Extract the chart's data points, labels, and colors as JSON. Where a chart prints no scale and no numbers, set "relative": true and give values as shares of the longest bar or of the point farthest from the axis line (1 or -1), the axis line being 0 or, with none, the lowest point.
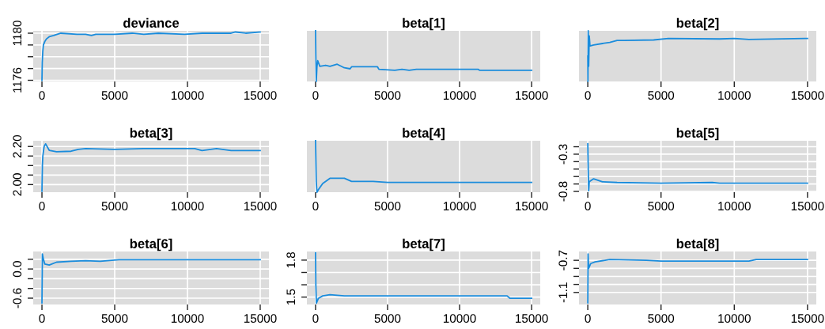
{
  "chart_data": [
    {
      "type": "line",
      "title": "deviance",
      "color": "#1a8cdc",
      "grid": true,
      "xlim": [
        -600,
        15600
      ],
      "xticks": [
        0,
        5000,
        10000,
        15000
      ],
      "ylim": [
        1175.9,
        1180.2
      ],
      "yticks": [
        {
          "value": 1176,
          "label": "1176"
        },
        {
          "value": 1177,
          "label": null
        },
        {
          "value": 1178,
          "label": null
        },
        {
          "value": 1179,
          "label": null
        },
        {
          "value": 1180,
          "label": "1180"
        }
      ],
      "x": [
        0,
        20,
        60,
        100,
        200,
        300,
        500,
        800,
        1300,
        2400,
        3000,
        3400,
        3700,
        5000,
        6200,
        7000,
        8000,
        9800,
        11000,
        13000,
        13300,
        14000,
        15000
      ],
      "values": [
        1176,
        1177.5,
        1178.5,
        1179,
        1179.3,
        1179.5,
        1179.7,
        1179.8,
        1180,
        1179.9,
        1179.9,
        1179.8,
        1179.9,
        1179.9,
        1180,
        1179.9,
        1180,
        1179.9,
        1180,
        1180,
        1180.1,
        1180,
        1180.1
      ]
    },
    {
      "type": "line",
      "title": "beta[1]",
      "color": "#1a8cdc",
      "grid": true,
      "relative": true,
      "xlim": [
        -600,
        15600
      ],
      "xticks": [
        0,
        5000,
        10000,
        15000
      ],
      "x": [
        0,
        20,
        50,
        100,
        150,
        300,
        700,
        1000,
        1500,
        2000,
        2400,
        2500,
        4300,
        4400,
        5500,
        6000,
        6500,
        7000,
        11300,
        11400,
        15000
      ],
      "values": [
        1,
        0.5,
        0,
        0.3,
        0.41,
        0.3,
        0.32,
        0.3,
        0.34,
        0.27,
        0.25,
        0.29,
        0.29,
        0.24,
        0.22,
        0.24,
        0.22,
        0.24,
        0.24,
        0.22,
        0.22
      ]
    },
    {
      "type": "line",
      "title": "beta[2]",
      "color": "#1a8cdc",
      "grid": true,
      "relative": true,
      "xlim": [
        -600,
        15600
      ],
      "xticks": [
        0,
        5000,
        10000,
        15000
      ],
      "x": [
        0,
        10,
        30,
        60,
        100,
        150,
        400,
        1000,
        1500,
        2000,
        2500,
        4500,
        5500,
        9000,
        10000,
        11000,
        15000
      ],
      "values": [
        0.5,
        0,
        1,
        0.3,
        0.9,
        0.7,
        0.72,
        0.75,
        0.77,
        0.81,
        0.81,
        0.82,
        0.85,
        0.84,
        0.85,
        0.83,
        0.85
      ]
    },
    {
      "type": "line",
      "title": "beta[3]",
      "color": "#1a8cdc",
      "grid": true,
      "xlim": [
        -600,
        15600
      ],
      "xticks": [
        0,
        5000,
        10000,
        15000
      ],
      "ylim": [
        1.96,
        2.23
      ],
      "yticks": [
        {
          "value": 2.0,
          "label": "2.00"
        },
        {
          "value": 2.05,
          "label": null
        },
        {
          "value": 2.1,
          "label": null
        },
        {
          "value": 2.15,
          "label": null
        },
        {
          "value": 2.2,
          "label": "2.20"
        }
      ],
      "x": [
        0,
        30,
        60,
        150,
        250,
        500,
        1000,
        2000,
        2500,
        3000,
        5000,
        7000,
        10500,
        11000,
        12000,
        13000,
        15000
      ],
      "values": [
        1.965,
        2.1,
        2.15,
        2.2,
        2.214,
        2.18,
        2.172,
        2.175,
        2.185,
        2.189,
        2.185,
        2.189,
        2.189,
        2.179,
        2.189,
        2.179,
        2.179
      ]
    },
    {
      "type": "line",
      "title": "beta[4]",
      "color": "#1a8cdc",
      "grid": true,
      "relative": true,
      "xlim": [
        -600,
        15600
      ],
      "xticks": [
        0,
        5000,
        10000,
        15000
      ],
      "x": [
        0,
        50,
        100,
        200,
        500,
        1000,
        2000,
        2500,
        4000,
        5000,
        7000,
        15000
      ],
      "values": [
        1,
        0.2,
        0,
        0.05,
        0.17,
        0.27,
        0.27,
        0.21,
        0.21,
        0.19,
        0.19,
        0.19
      ]
    },
    {
      "type": "line",
      "title": "beta[5]",
      "color": "#1a8cdc",
      "grid": true,
      "xlim": [
        -600,
        15600
      ],
      "xticks": [
        0,
        5000,
        10000,
        15000
      ],
      "ylim": [
        -0.81,
        -0.12
      ],
      "yticks": [
        {
          "value": -0.2,
          "label": null
        },
        {
          "value": -0.3,
          "label": "-0.3"
        },
        {
          "value": -0.4,
          "label": null
        },
        {
          "value": -0.5,
          "label": null
        },
        {
          "value": -0.6,
          "label": null
        },
        {
          "value": -0.7,
          "label": null
        },
        {
          "value": -0.8,
          "label": "-0.8"
        }
      ],
      "x": [
        0,
        30,
        60,
        100,
        400,
        1000,
        2000,
        5000,
        8500,
        9000,
        10000,
        15000
      ],
      "values": [
        -0.16,
        -0.5,
        -0.79,
        -0.67,
        -0.63,
        -0.67,
        -0.68,
        -0.69,
        -0.68,
        -0.69,
        -0.69,
        -0.69
      ]
    },
    {
      "type": "line",
      "title": "beta[6]",
      "color": "#1a8cdc",
      "grid": true,
      "xlim": [
        -600,
        15600
      ],
      "xticks": [
        0,
        5000,
        10000,
        15000
      ],
      "ylim": [
        -0.73,
        0.36
      ],
      "yticks": [
        {
          "value": 0.2,
          "label": null
        },
        {
          "value": 0.0,
          "label": "0.0"
        },
        {
          "value": -0.2,
          "label": null
        },
        {
          "value": -0.4,
          "label": null
        },
        {
          "value": -0.6,
          "label": "-0.6"
        }
      ],
      "x": [
        0,
        30,
        100,
        200,
        500,
        1000,
        2000,
        3000,
        4000,
        5300,
        15000
      ],
      "values": [
        -0.7,
        0.31,
        0.2,
        0.1,
        0.08,
        0.14,
        0.16,
        0.17,
        0.16,
        0.19,
        0.19
      ]
    },
    {
      "type": "line",
      "title": "beta[7]",
      "color": "#1a8cdc",
      "grid": true,
      "xlim": [
        -600,
        15600
      ],
      "xticks": [
        0,
        5000,
        10000,
        15000
      ],
      "ylim": [
        1.44,
        1.87
      ],
      "yticks": [
        {
          "value": 1.5,
          "label": "1.5"
        },
        {
          "value": 1.6,
          "label": null
        },
        {
          "value": 1.7,
          "label": null
        },
        {
          "value": 1.8,
          "label": "1.8"
        }
      ],
      "x": [
        0,
        20,
        60,
        200,
        500,
        1000,
        2000,
        6000,
        13300,
        13500,
        15000
      ],
      "values": [
        1.86,
        1.6,
        1.45,
        1.49,
        1.51,
        1.52,
        1.51,
        1.51,
        1.51,
        1.49,
        1.49
      ]
    },
    {
      "type": "line",
      "title": "beta[8]",
      "color": "#1a8cdc",
      "grid": true,
      "xlim": [
        -600,
        15600
      ],
      "xticks": [
        0,
        5000,
        10000,
        15000
      ],
      "ylim": [
        -1.25,
        -0.59
      ],
      "yticks": [
        {
          "value": -0.7,
          "label": "-0.7"
        },
        {
          "value": -0.8,
          "label": null
        },
        {
          "value": -0.9,
          "label": null
        },
        {
          "value": -1.0,
          "label": null
        },
        {
          "value": -1.1,
          "label": "-1.1"
        }
      ],
      "x": [
        0,
        20,
        60,
        200,
        500,
        1500,
        4000,
        5000,
        8000,
        11000,
        11500,
        15000
      ],
      "values": [
        -1.23,
        -0.62,
        -0.8,
        -0.74,
        -0.72,
        -0.69,
        -0.7,
        -0.71,
        -0.71,
        -0.71,
        -0.69,
        -0.69
      ]
    }
  ]
}
